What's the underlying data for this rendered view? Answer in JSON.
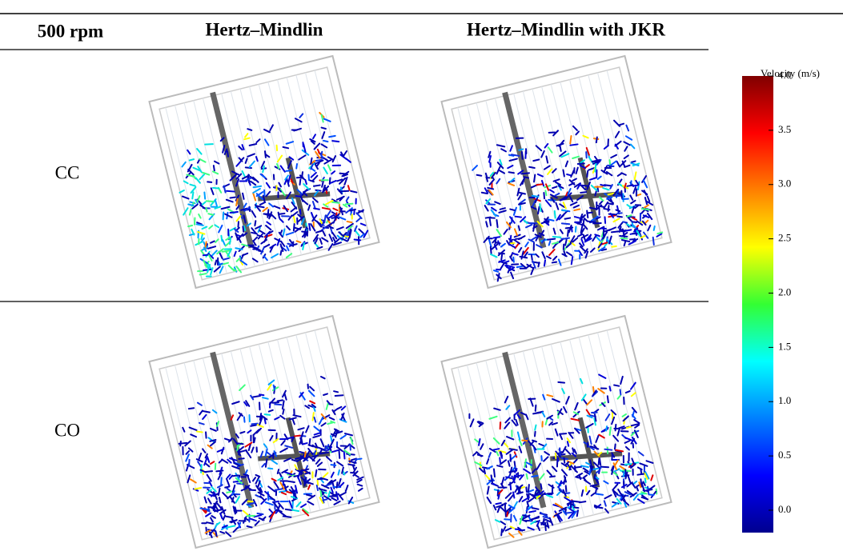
{
  "table": {
    "header": [
      "500 rpm",
      "Hertz–Mindlin",
      "Hertz–Mindlin with JKR"
    ],
    "rows": [
      [
        "CC"
      ],
      [
        "CO"
      ]
    ]
  },
  "colorbar": {
    "title": "Velocity (m/s)",
    "lim": [
      0,
      4
    ],
    "ticks": [
      {
        "value": 0,
        "label": "0.0"
      },
      {
        "value": 0.5,
        "label": "0.5"
      },
      {
        "value": 1,
        "label": "1.0"
      },
      {
        "value": 1.5,
        "label": "1.5"
      },
      {
        "value": 2,
        "label": "2.0"
      },
      {
        "value": 2.5,
        "label": "2.5"
      },
      {
        "value": 3,
        "label": "3.0"
      },
      {
        "value": 3.5,
        "label": "3.5"
      },
      {
        "value": 4,
        "label": "4.0"
      }
    ]
  }
}
